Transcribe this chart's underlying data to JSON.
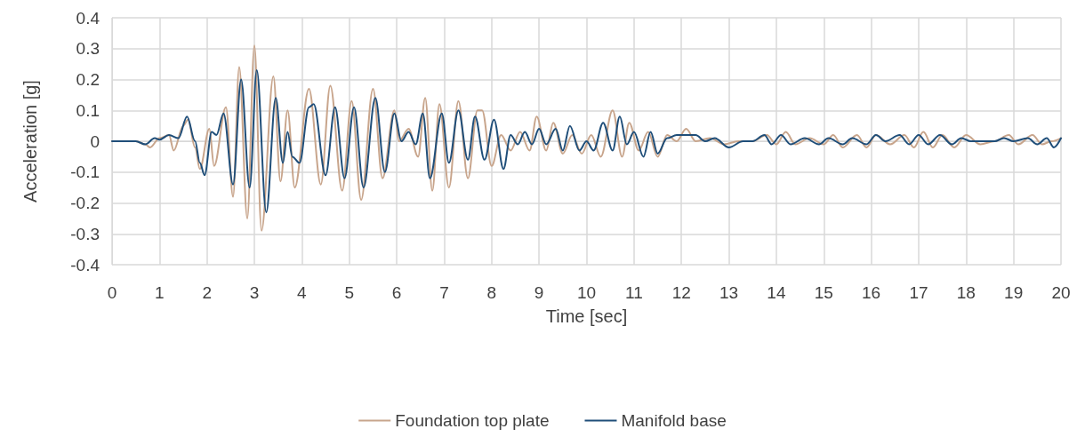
{
  "chart_data": {
    "type": "line",
    "xlabel": "Time [sec]",
    "ylabel": "Acceleration [g]",
    "xlim": [
      0,
      20
    ],
    "xticks": [
      0,
      1,
      2,
      3,
      4,
      5,
      6,
      7,
      8,
      9,
      10,
      11,
      12,
      13,
      14,
      15,
      16,
      17,
      18,
      19,
      20
    ],
    "ylim": [
      -0.4,
      0.4
    ],
    "yticks": [
      -0.4,
      -0.3,
      -0.2,
      -0.1,
      0,
      0.1,
      0.2,
      0.3,
      0.4
    ],
    "grid": true,
    "legend": "bottom",
    "marker": "none",
    "line_style": "solid",
    "series": [
      {
        "name": "Foundation top plate",
        "color": "#c8a58c",
        "x": [
          0,
          0.5,
          0.7,
          0.8,
          1.0,
          1.2,
          1.3,
          1.5,
          1.6,
          1.75,
          1.85,
          2.05,
          2.15,
          2.4,
          2.55,
          2.68,
          2.85,
          3.0,
          3.15,
          3.4,
          3.55,
          3.7,
          3.85,
          4.15,
          4.4,
          4.6,
          4.85,
          5.05,
          5.25,
          5.5,
          5.7,
          5.95,
          6.05,
          6.25,
          6.45,
          6.6,
          6.75,
          6.9,
          7.1,
          7.3,
          7.5,
          7.7,
          7.8,
          8.0,
          8.2,
          8.4,
          8.6,
          8.8,
          8.95,
          9.15,
          9.3,
          9.5,
          9.7,
          9.9,
          10.1,
          10.3,
          10.55,
          10.75,
          10.9,
          11.1,
          11.3,
          11.5,
          11.7,
          11.9,
          12.1,
          12.3,
          12.6,
          12.9,
          13.2,
          13.5,
          13.8,
          14.0,
          14.2,
          14.4,
          14.7,
          15.0,
          15.2,
          15.4,
          15.7,
          15.9,
          16.1,
          16.4,
          16.7,
          16.9,
          17.1,
          17.3,
          17.5,
          17.75,
          18.0,
          18.3,
          18.6,
          18.9,
          19.1,
          19.4,
          19.6,
          19.8,
          20
        ],
        "values": [
          0,
          0,
          -0.01,
          -0.02,
          0.01,
          0.02,
          -0.03,
          0.05,
          0.07,
          -0.02,
          -0.09,
          0.04,
          -0.08,
          0.11,
          -0.18,
          0.24,
          -0.25,
          0.31,
          -0.29,
          0.21,
          -0.13,
          0.1,
          -0.15,
          0.17,
          -0.14,
          0.18,
          -0.16,
          0.13,
          -0.19,
          0.17,
          -0.12,
          0.1,
          0,
          0.04,
          -0.05,
          0.14,
          -0.16,
          0.12,
          -0.15,
          0.13,
          -0.12,
          0.1,
          0.1,
          -0.08,
          0.02,
          -0.03,
          0.03,
          -0.03,
          0.08,
          -0.03,
          0.06,
          -0.04,
          0.02,
          -0.04,
          0.02,
          -0.05,
          0.1,
          -0.05,
          0.06,
          -0.03,
          0.03,
          -0.05,
          0.02,
          0,
          0.04,
          0,
          0.01,
          -0.01,
          0,
          0,
          0.02,
          -0.01,
          0.03,
          -0.01,
          0.01,
          -0.01,
          0.02,
          -0.02,
          0.02,
          -0.02,
          0.02,
          -0.01,
          0.02,
          -0.02,
          0.03,
          -0.02,
          0.02,
          -0.02,
          0.02,
          -0.01,
          0,
          0.02,
          -0.01,
          0.02,
          -0.01,
          0,
          0.01
        ]
      },
      {
        "name": "Manifold base",
        "color": "#1f4e79",
        "x": [
          0,
          0.5,
          0.7,
          0.9,
          1.0,
          1.2,
          1.4,
          1.58,
          1.75,
          1.85,
          1.95,
          2.1,
          2.2,
          2.35,
          2.55,
          2.72,
          2.9,
          3.05,
          3.25,
          3.45,
          3.6,
          3.7,
          3.8,
          3.95,
          4.15,
          4.25,
          4.5,
          4.7,
          4.9,
          5.1,
          5.3,
          5.55,
          5.75,
          5.95,
          6.1,
          6.25,
          6.4,
          6.55,
          6.7,
          6.95,
          7.1,
          7.3,
          7.5,
          7.65,
          7.85,
          8.05,
          8.25,
          8.4,
          8.55,
          8.7,
          8.85,
          9.0,
          9.15,
          9.35,
          9.5,
          9.65,
          9.85,
          10.0,
          10.15,
          10.35,
          10.55,
          10.7,
          10.85,
          11.0,
          11.2,
          11.35,
          11.5,
          11.7,
          11.9,
          12.1,
          12.3,
          12.5,
          12.7,
          13.0,
          13.3,
          13.5,
          13.75,
          13.9,
          14.1,
          14.3,
          14.6,
          14.9,
          15.1,
          15.4,
          15.6,
          15.9,
          16.1,
          16.3,
          16.6,
          16.8,
          17.0,
          17.2,
          17.45,
          17.7,
          17.9,
          18.1,
          18.4,
          18.6,
          18.8,
          19.0,
          19.3,
          19.5,
          19.7,
          19.85,
          20
        ],
        "values": [
          0,
          0,
          -0.01,
          0.01,
          0.005,
          0.02,
          0.01,
          0.08,
          0,
          -0.07,
          -0.11,
          0.03,
          0.02,
          0.09,
          -0.14,
          0.2,
          -0.15,
          0.23,
          -0.23,
          0.14,
          -0.07,
          0.03,
          -0.05,
          -0.07,
          0.11,
          0.12,
          -0.11,
          0.11,
          -0.12,
          0.11,
          -0.15,
          0.14,
          -0.1,
          0.09,
          0,
          0.03,
          -0.01,
          0.09,
          -0.12,
          0.09,
          -0.07,
          0.1,
          -0.06,
          0.08,
          -0.06,
          0.07,
          -0.09,
          0.02,
          -0.01,
          0.03,
          -0.01,
          0.04,
          -0.01,
          0.04,
          -0.03,
          0.05,
          -0.03,
          0,
          -0.03,
          0.06,
          -0.03,
          0.08,
          -0.01,
          0.03,
          -0.05,
          0.03,
          -0.04,
          0.01,
          0.02,
          0.02,
          0.02,
          0,
          0.01,
          -0.02,
          0,
          0,
          0.02,
          -0.01,
          0.02,
          -0.01,
          0.01,
          -0.01,
          0.01,
          -0.01,
          0.01,
          -0.01,
          0.02,
          0,
          0.02,
          -0.01,
          0.02,
          -0.01,
          0.02,
          -0.01,
          0.01,
          0,
          0,
          0,
          0.01,
          0,
          0.01,
          -0.01,
          0.01,
          -0.02,
          0.01
        ]
      }
    ]
  }
}
